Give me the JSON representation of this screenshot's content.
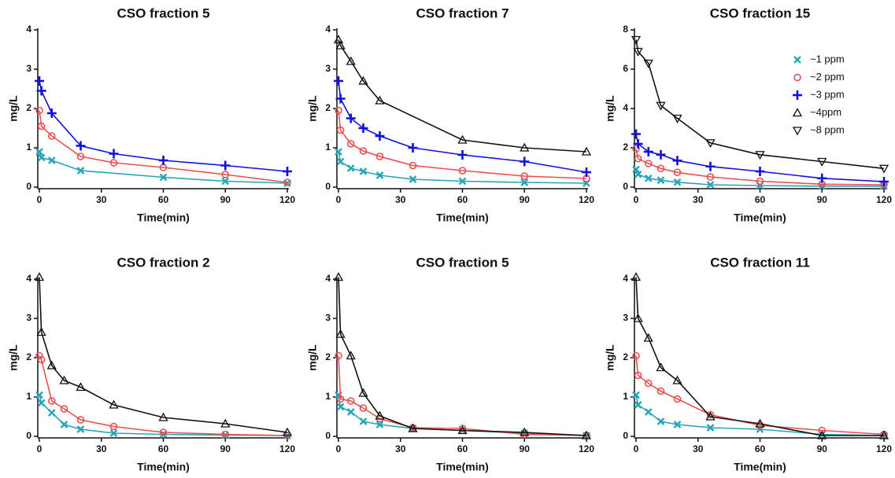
{
  "chart_data": [
    {
      "type": "scatter-fit",
      "title": "CSO fraction 5",
      "xlabel": "Time(min)",
      "ylabel": "mg/L",
      "xlim": [
        0,
        120
      ],
      "xticks": [
        0,
        30,
        60,
        90,
        120
      ],
      "ylim": [
        0,
        4
      ],
      "yticks": [
        0,
        1,
        2,
        3,
        4
      ],
      "series": [
        {
          "marker": "cross",
          "color": "#26a5b8",
          "x": [
            0,
            1,
            6,
            20,
            60,
            90,
            120
          ],
          "values": [
            0.9,
            0.75,
            0.68,
            0.42,
            0.25,
            0.15,
            0.1
          ]
        },
        {
          "marker": "circle",
          "color": "#e8504f",
          "x": [
            0,
            1,
            6,
            20,
            36,
            60,
            90,
            120
          ],
          "values": [
            1.95,
            1.55,
            1.3,
            0.78,
            0.62,
            0.5,
            0.32,
            0.12
          ]
        },
        {
          "marker": "plus",
          "color": "#1010e0",
          "x": [
            0,
            1,
            6,
            20,
            36,
            60,
            90,
            120
          ],
          "values": [
            2.7,
            2.45,
            1.88,
            1.05,
            0.85,
            0.68,
            0.55,
            0.4
          ]
        }
      ]
    },
    {
      "type": "scatter-fit",
      "title": "CSO fraction 7",
      "xlabel": "Time(min)",
      "ylabel": "mg/L",
      "xlim": [
        0,
        120
      ],
      "xticks": [
        0,
        30,
        60,
        90,
        120
      ],
      "ylim": [
        0,
        4
      ],
      "yticks": [
        0,
        1,
        2,
        3,
        4
      ],
      "series": [
        {
          "marker": "cross",
          "color": "#26a5b8",
          "x": [
            0,
            1,
            6,
            12,
            20,
            36,
            60,
            90,
            120
          ],
          "values": [
            0.9,
            0.65,
            0.48,
            0.4,
            0.3,
            0.2,
            0.15,
            0.12,
            0.1
          ]
        },
        {
          "marker": "circle",
          "color": "#e8504f",
          "x": [
            0,
            1,
            6,
            12,
            20,
            36,
            60,
            90,
            120
          ],
          "values": [
            1.95,
            1.45,
            1.1,
            0.92,
            0.78,
            0.55,
            0.42,
            0.28,
            0.22
          ]
        },
        {
          "marker": "plus",
          "color": "#1010e0",
          "x": [
            0,
            1,
            6,
            12,
            20,
            36,
            60,
            90,
            120
          ],
          "values": [
            2.7,
            2.25,
            1.75,
            1.5,
            1.3,
            1.0,
            0.82,
            0.65,
            0.38
          ]
        },
        {
          "marker": "triangle-up",
          "color": "#111111",
          "x": [
            0,
            1,
            6,
            12,
            20,
            60,
            90,
            120
          ],
          "values": [
            3.75,
            3.6,
            3.2,
            2.7,
            2.2,
            1.2,
            1.0,
            0.9
          ]
        }
      ]
    },
    {
      "type": "scatter-fit",
      "title": "CSO fraction 15",
      "xlabel": "Time(min)",
      "ylabel": "mg/L",
      "xlim": [
        0,
        120
      ],
      "xticks": [
        0,
        30,
        60,
        90,
        120
      ],
      "ylim": [
        0,
        8
      ],
      "yticks": [
        0,
        2,
        4,
        6,
        8
      ],
      "legend": [
        {
          "name": "~1 ppm",
          "marker": "cross",
          "color": "#26a5b8"
        },
        {
          "name": "~2 ppm",
          "marker": "circle",
          "color": "#e8504f"
        },
        {
          "name": "~3 ppm",
          "marker": "plus",
          "color": "#1010e0"
        },
        {
          "name": "~4ppm",
          "marker": "triangle-up",
          "color": "#111111"
        },
        {
          "name": "~8 ppm",
          "marker": "triangle-down",
          "color": "#111111"
        }
      ],
      "series": [
        {
          "marker": "cross",
          "color": "#26a5b8",
          "x": [
            0,
            1,
            6,
            12,
            20,
            36,
            60,
            90,
            120
          ],
          "values": [
            0.9,
            0.65,
            0.45,
            0.35,
            0.25,
            0.12,
            0.08,
            0.05,
            0.05
          ]
        },
        {
          "marker": "circle",
          "color": "#e8504f",
          "x": [
            0,
            1,
            6,
            12,
            20,
            36,
            60,
            90,
            120
          ],
          "values": [
            1.95,
            1.45,
            1.2,
            0.95,
            0.75,
            0.52,
            0.3,
            0.15,
            0.12
          ]
        },
        {
          "marker": "plus",
          "color": "#1010e0",
          "x": [
            0,
            1,
            6,
            12,
            20,
            36,
            60,
            90,
            120
          ],
          "values": [
            2.7,
            2.2,
            1.8,
            1.65,
            1.35,
            1.05,
            0.8,
            0.45,
            0.28
          ]
        },
        {
          "marker": "triangle-down",
          "color": "#111111",
          "x": [
            0,
            1,
            6,
            12,
            20,
            36,
            60,
            90,
            120
          ],
          "values": [
            7.5,
            6.9,
            6.3,
            4.15,
            3.5,
            2.25,
            1.65,
            1.3,
            0.95
          ]
        }
      ]
    },
    {
      "type": "scatter-fit",
      "title": "CSO fraction 2",
      "xlabel": "Time(min)",
      "ylabel": "mg/L",
      "xlim": [
        0,
        120
      ],
      "xticks": [
        0,
        30,
        60,
        90,
        120
      ],
      "ylim": [
        0,
        4
      ],
      "yticks": [
        0,
        1,
        2,
        3,
        4
      ],
      "series": [
        {
          "marker": "cross",
          "color": "#26a5b8",
          "x": [
            0,
            1,
            6,
            12,
            20,
            36,
            60,
            90,
            120
          ],
          "values": [
            1.05,
            0.85,
            0.6,
            0.3,
            0.18,
            0.08,
            0.05,
            0.03,
            0.02
          ]
        },
        {
          "marker": "circle",
          "color": "#e8504f",
          "x": [
            0,
            1,
            6,
            12,
            20,
            36,
            60,
            90,
            120
          ],
          "values": [
            2.05,
            1.95,
            0.9,
            0.7,
            0.42,
            0.25,
            0.1,
            0.05,
            0.02
          ]
        },
        {
          "marker": "triangle-up",
          "color": "#111111",
          "x": [
            0,
            1,
            6,
            12,
            20,
            36,
            60,
            90,
            120
          ],
          "values": [
            4.05,
            2.65,
            1.8,
            1.42,
            1.25,
            0.8,
            0.48,
            0.32,
            0.1
          ]
        }
      ]
    },
    {
      "type": "scatter-fit",
      "title": "CSO fraction 5",
      "xlabel": "Time(min)",
      "ylabel": "mg/L",
      "xlim": [
        0,
        120
      ],
      "xticks": [
        0,
        30,
        60,
        90,
        120
      ],
      "ylim": [
        0,
        4
      ],
      "yticks": [
        0,
        1,
        2,
        3,
        4
      ],
      "series": [
        {
          "marker": "cross",
          "color": "#26a5b8",
          "x": [
            0,
            1,
            6,
            12,
            20,
            36,
            60,
            90,
            120
          ],
          "values": [
            1.05,
            0.75,
            0.62,
            0.38,
            0.3,
            0.2,
            0.15,
            0.08,
            0.02
          ]
        },
        {
          "marker": "circle",
          "color": "#e8504f",
          "x": [
            0,
            1,
            6,
            12,
            20,
            36,
            60,
            90,
            120
          ],
          "values": [
            2.05,
            0.95,
            0.9,
            0.72,
            0.45,
            0.22,
            0.2,
            0.05,
            0.02
          ]
        },
        {
          "marker": "triangle-up",
          "color": "#111111",
          "x": [
            0,
            1,
            6,
            12,
            20,
            36,
            60,
            90,
            120
          ],
          "values": [
            4.05,
            2.6,
            2.05,
            1.1,
            0.52,
            0.2,
            0.15,
            0.1,
            0.02
          ]
        }
      ]
    },
    {
      "type": "scatter-fit",
      "title": "CSO fraction 11",
      "xlabel": "Time(min)",
      "ylabel": "mg/L",
      "xlim": [
        0,
        120
      ],
      "xticks": [
        0,
        30,
        60,
        90,
        120
      ],
      "ylim": [
        0,
        4
      ],
      "yticks": [
        0,
        1,
        2,
        3,
        4
      ],
      "series": [
        {
          "marker": "cross",
          "color": "#26a5b8",
          "x": [
            0,
            1,
            6,
            12,
            20,
            36,
            60,
            90,
            120
          ],
          "values": [
            1.05,
            0.8,
            0.62,
            0.38,
            0.3,
            0.22,
            0.18,
            0.05,
            0.02
          ]
        },
        {
          "marker": "circle",
          "color": "#e8504f",
          "x": [
            0,
            1,
            6,
            12,
            20,
            36,
            60,
            90,
            120
          ],
          "values": [
            2.05,
            1.55,
            1.35,
            1.15,
            0.95,
            0.55,
            0.28,
            0.15,
            0.05
          ]
        },
        {
          "marker": "triangle-up",
          "color": "#111111",
          "x": [
            0,
            1,
            6,
            12,
            20,
            36,
            60,
            90,
            120
          ],
          "values": [
            4.05,
            3.0,
            2.5,
            1.75,
            1.42,
            0.5,
            0.32,
            0.02,
            0.02
          ]
        }
      ]
    }
  ]
}
